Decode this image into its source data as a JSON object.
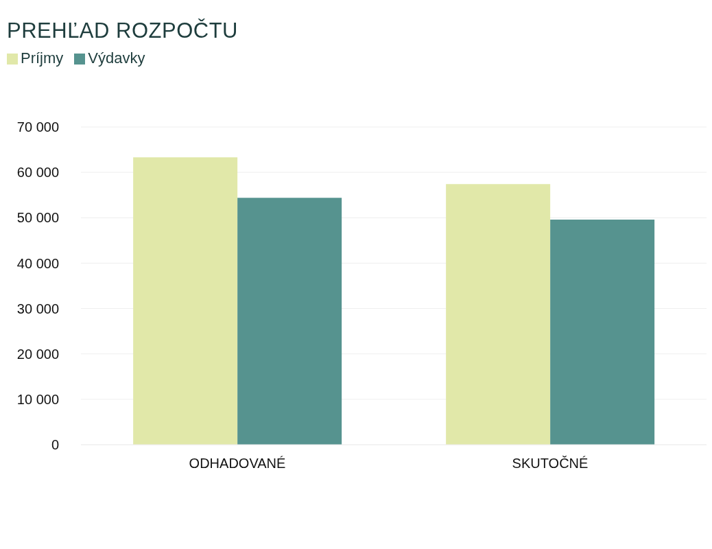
{
  "chart_data": {
    "type": "bar",
    "title": "PREHĽAD ROZPOČTU",
    "categories": [
      "ODHADOVANÉ",
      "SKUTOČNÉ"
    ],
    "series": [
      {
        "name": "Príjmy",
        "color": "#e1e8a9",
        "values": [
          63300,
          57400
        ]
      },
      {
        "name": "Výdavky",
        "color": "#56938f",
        "values": [
          54400,
          49600
        ]
      }
    ],
    "ylim": [
      0,
      70000
    ],
    "yticks": [
      {
        "value": 0,
        "label": "0"
      },
      {
        "value": 10000,
        "label": "10 000"
      },
      {
        "value": 20000,
        "label": "20 000"
      },
      {
        "value": 30000,
        "label": "30 000"
      },
      {
        "value": 40000,
        "label": "40 000"
      },
      {
        "value": 50000,
        "label": "50 000"
      },
      {
        "value": 60000,
        "label": "60 000"
      },
      {
        "value": 70000,
        "label": "70 000"
      }
    ],
    "grid": "y",
    "legend": "top left"
  }
}
